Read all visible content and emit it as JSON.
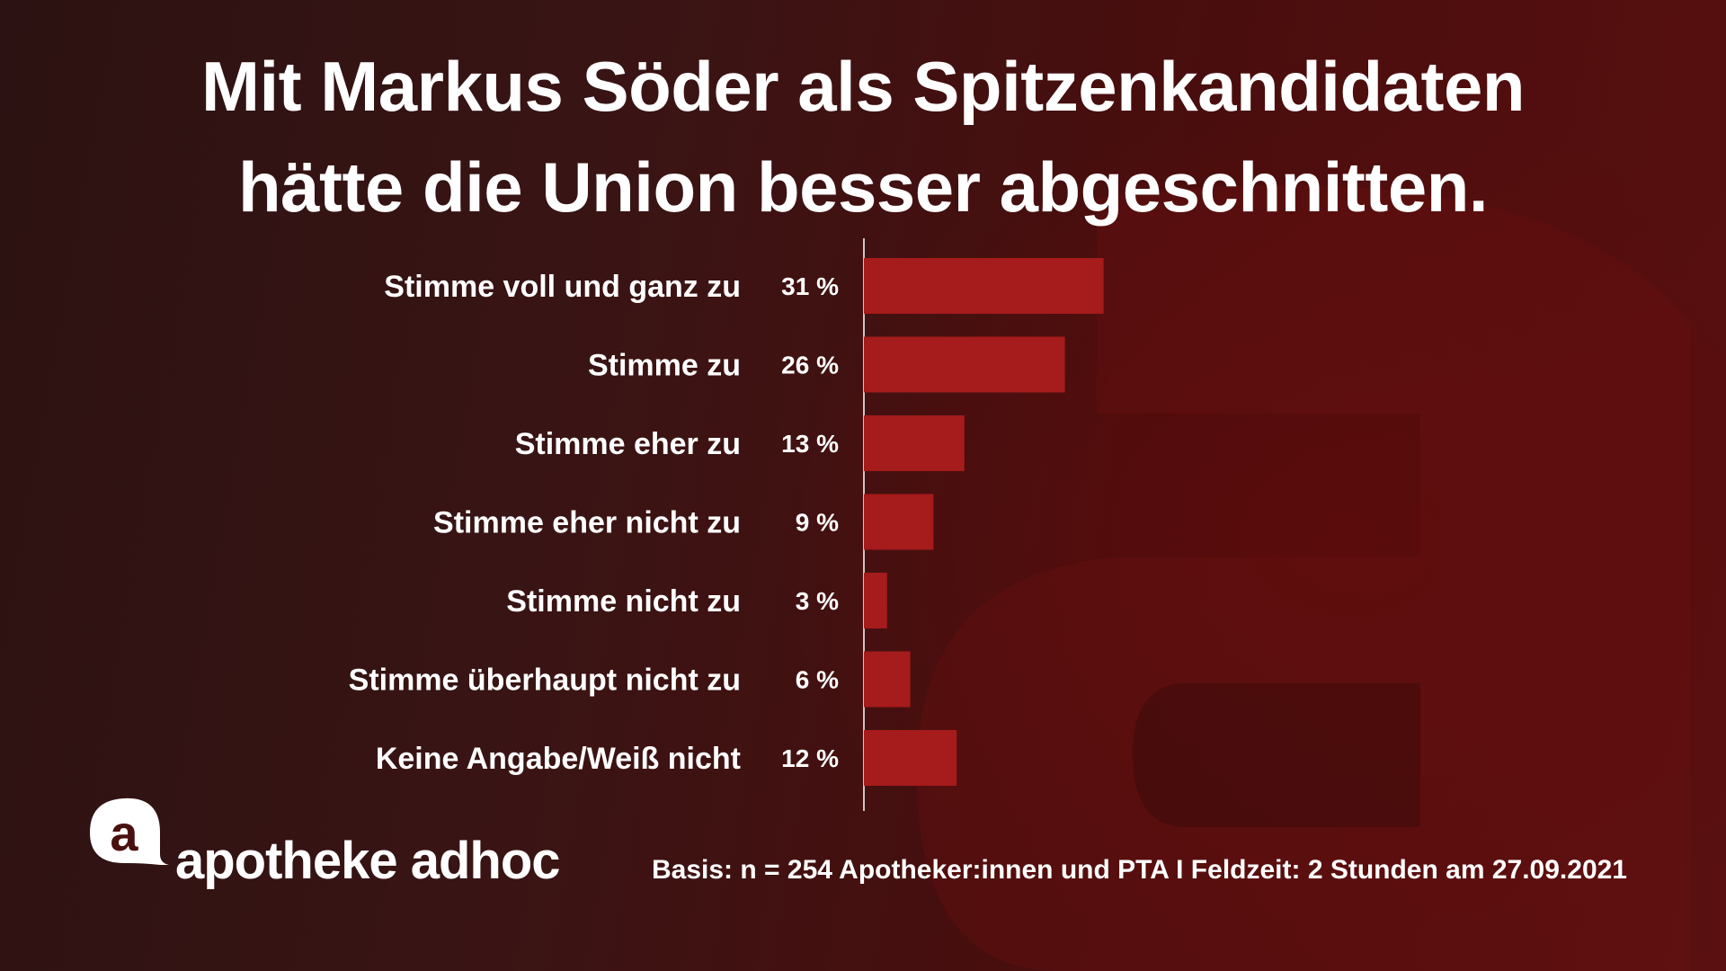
{
  "title_line1": "Mit Markus Söder als Spitzenkandidaten",
  "title_line2": "hätte die Union besser abgeschnitten.",
  "chart_data": {
    "type": "bar",
    "orientation": "horizontal",
    "categories": [
      "Stimme voll und ganz zu",
      "Stimme zu",
      "Stimme eher zu",
      "Stimme eher nicht zu",
      "Stimme nicht zu",
      "Stimme überhaupt nicht zu",
      "Keine Angabe/Weiß nicht"
    ],
    "values": [
      31,
      26,
      13,
      9,
      3,
      6,
      12
    ],
    "value_labels": [
      "31 %",
      "26 %",
      "13 %",
      "9 %",
      "3 %",
      "6 %",
      "12 %"
    ],
    "unit": "%",
    "bar_color": "#a61b1b",
    "grid": false
  },
  "logo": {
    "mark": "a",
    "text": "apotheke adhoc"
  },
  "footnote": "Basis: n = 254 Apotheker:innen und PTA I Feldzeit: 2 Stunden am 27.09.2021",
  "colors": {
    "background": "#3a1414",
    "bar": "#a61b1b",
    "text": "#ffffff"
  }
}
